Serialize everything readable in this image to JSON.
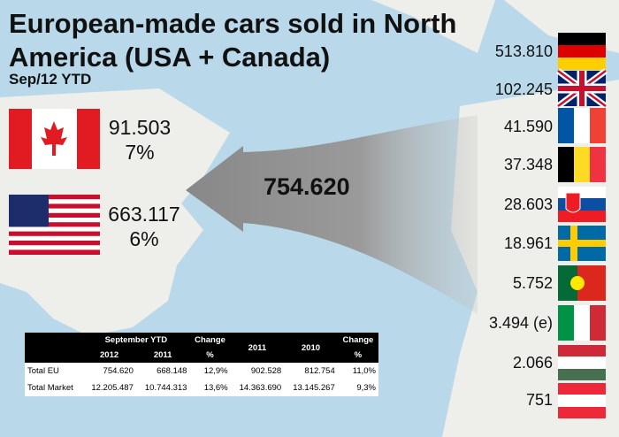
{
  "header": {
    "title": "European-made cars sold in North America (USA + Canada)",
    "subtitle": "Sep/12 YTD"
  },
  "markets": [
    {
      "value": "91.503",
      "share": "7%"
    },
    {
      "value": "663.117",
      "share": "6%"
    }
  ],
  "total": "754.620",
  "countries": [
    "513.810",
    "102.245",
    "41.590",
    "37.348",
    "28.603",
    "18.961",
    "5.752",
    "3.494 (e)",
    "2.066",
    "751"
  ],
  "table": {
    "header": [
      [
        "September YTD",
        "Change",
        "2011",
        "2010",
        "Change"
      ],
      [
        "2012",
        "2011",
        "%",
        "%"
      ]
    ],
    "rows": [
      [
        "Total EU",
        "754.620",
        "668.148",
        "12,9%",
        "902.528",
        "812.754",
        "11,0%"
      ],
      [
        "Total Market",
        "12.205.487",
        "10.744.313",
        "13,6%",
        "14.363.690",
        "13.145.267",
        "9,3%"
      ]
    ]
  }
}
